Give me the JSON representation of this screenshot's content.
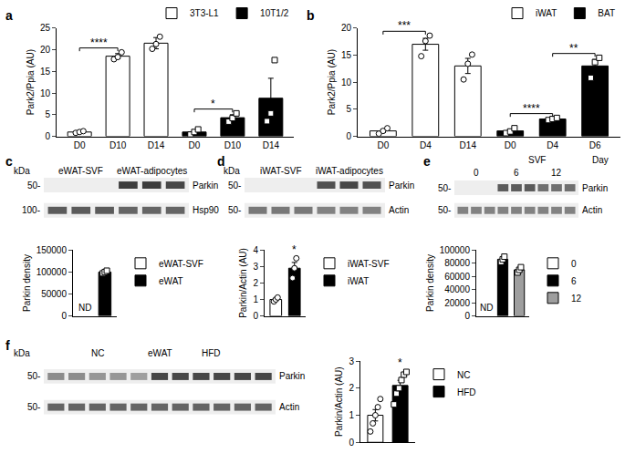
{
  "chart_data": [
    {
      "type": "bar",
      "title": "a",
      "ylabel": "Park2/Ppia (AU)",
      "categories": [
        "D0",
        "D10",
        "D14",
        "D0",
        "D10",
        "D14"
      ],
      "series": [
        {
          "name": "3T3-L1",
          "color": "#ffffff",
          "marker": "circle",
          "values": [
            1.0,
            18.5,
            21.5,
            null,
            null,
            null
          ],
          "errors": [
            0.2,
            0.6,
            1.3,
            null,
            null,
            null
          ],
          "points": [
            [
              0.8,
              1.0,
              1.2
            ],
            [
              17.8,
              18.3,
              19.4
            ],
            [
              20.2,
              21.3,
              23.0
            ],
            null,
            null,
            null
          ]
        },
        {
          "name": "10T1/2",
          "color": "#000000",
          "marker": "square",
          "values": [
            null,
            null,
            null,
            1.0,
            4.3,
            8.8
          ],
          "errors": [
            null,
            null,
            null,
            0.5,
            0.7,
            4.6
          ],
          "points": [
            null,
            null,
            null,
            [
              0.4,
              1.0,
              1.6
            ],
            [
              3.4,
              4.2,
              5.3
            ],
            [
              3.5,
              5.3,
              17.6
            ]
          ]
        }
      ],
      "ylim": [
        0,
        25
      ],
      "yticks": [
        0,
        5,
        10,
        15,
        20,
        25
      ],
      "grid": false,
      "legend": "top",
      "annotations": [
        {
          "text": "****",
          "from": 0,
          "to": 1
        },
        {
          "text": "*",
          "from": 3,
          "to": 4
        }
      ]
    },
    {
      "type": "bar",
      "title": "b",
      "ylabel": "Park2/Ppia (AU)",
      "categories": [
        "D0",
        "D4",
        "D14",
        "D0",
        "D4",
        "D6"
      ],
      "series": [
        {
          "name": "iWAT",
          "color": "#ffffff",
          "marker": "circle",
          "values": [
            1.0,
            17.0,
            13.0,
            null,
            null,
            null
          ],
          "errors": [
            0.3,
            1.1,
            1.4,
            null,
            null,
            null
          ],
          "points": [
            [
              0.5,
              1.0,
              1.5
            ],
            [
              14.8,
              17.6,
              18.6
            ],
            [
              10.5,
              13.4,
              15.1
            ],
            null,
            null,
            null
          ]
        },
        {
          "name": "BAT",
          "color": "#000000",
          "marker": "square",
          "values": [
            null,
            null,
            null,
            1.0,
            3.2,
            13.0
          ],
          "errors": [
            null,
            null,
            null,
            0.25,
            0.12,
            1.2
          ],
          "points": [
            null,
            null,
            null,
            [
              0.6,
              0.9,
              1.5
            ],
            [
              3.0,
              3.2,
              3.4
            ],
            [
              10.8,
              13.7,
              14.5
            ]
          ]
        }
      ],
      "ylim": [
        0,
        20
      ],
      "yticks": [
        0,
        5,
        10,
        15,
        20
      ],
      "grid": false,
      "legend": "top",
      "annotations": [
        {
          "text": "***",
          "from": 0,
          "to": 1
        },
        {
          "text": "****",
          "from": 3,
          "to": 4
        },
        {
          "text": "**",
          "from": 4,
          "to": 5
        }
      ]
    },
    {
      "type": "bar",
      "ylabel": "Parkin density",
      "categories": [
        null,
        null
      ],
      "series": [
        {
          "name": "eWAT-SVF",
          "color": "#ffffff",
          "marker": "circle",
          "values": [
            null,
            null
          ],
          "value_labels": [
            "ND",
            null
          ]
        },
        {
          "name": "eWAT",
          "color": "#000000",
          "marker": "square",
          "values": [
            null,
            100000
          ],
          "errors": [
            null,
            1800
          ],
          "points": [
            null,
            [
              97000,
              100000,
              103000
            ]
          ]
        }
      ],
      "ylim": [
        0,
        150000
      ],
      "yticks": [
        0,
        50000,
        100000,
        150000
      ],
      "grid": false,
      "legend": "right",
      "tick_labels": "y"
    },
    {
      "type": "bar",
      "ylabel": "Parkin/Actin (AU)",
      "categories": [
        null,
        null
      ],
      "series": [
        {
          "name": "iWAT-SVF",
          "color": "#ffffff",
          "marker": "circle",
          "values": [
            1.0,
            null
          ],
          "errors": [
            0.07,
            null
          ],
          "points": [
            [
              0.88,
              1.0,
              1.12
            ],
            null
          ]
        },
        {
          "name": "iWAT",
          "color": "#000000",
          "marker": "circle",
          "values": [
            null,
            2.9
          ],
          "errors": [
            null,
            0.35
          ],
          "points": [
            null,
            [
              2.3,
              2.9,
              3.5
            ]
          ]
        }
      ],
      "ylim": [
        0,
        4
      ],
      "yticks": [
        0,
        1,
        2,
        3,
        4
      ],
      "grid": false,
      "legend": "right",
      "tick_labels": "y",
      "annotations": [
        {
          "text": "*",
          "from": 1,
          "to": 1
        }
      ]
    },
    {
      "type": "bar",
      "ylabel": "Parkin density",
      "categories": [
        null,
        null,
        null
      ],
      "series": [
        {
          "name": "0",
          "color": "#ffffff",
          "marker": "circle",
          "values": [
            null,
            null,
            null
          ],
          "value_labels": [
            "ND",
            null,
            null
          ]
        },
        {
          "name": "6",
          "color": "#000000",
          "marker": "square",
          "values": [
            null,
            86000,
            null
          ],
          "errors": [
            null,
            2300,
            null
          ],
          "points": [
            null,
            [
              82000,
              86000,
              90000
            ],
            null
          ]
        },
        {
          "name": "12",
          "color": "#9e9e9e",
          "marker": "square",
          "values": [
            null,
            null,
            70000
          ],
          "errors": [
            null,
            null,
            2300
          ],
          "points": [
            null,
            null,
            [
              66000,
              70000,
              74000
            ]
          ]
        }
      ],
      "ylim": [
        0,
        100000
      ],
      "yticks": [
        0,
        20000,
        40000,
        60000,
        80000,
        100000
      ],
      "grid": false,
      "legend": "right",
      "tick_labels": "y"
    },
    {
      "type": "bar",
      "ylabel": "Parkin/Actin (AU)",
      "categories": [
        null,
        null
      ],
      "series": [
        {
          "name": "NC",
          "color": "#ffffff",
          "marker": "circle",
          "values": [
            1.0,
            null
          ],
          "errors": [
            0.21,
            null
          ],
          "points": [
            [
              0.4,
              0.7,
              1.0,
              1.3,
              1.6
            ],
            null
          ]
        },
        {
          "name": "HFD",
          "color": "#000000",
          "marker": "square",
          "values": [
            null,
            2.1
          ],
          "errors": [
            null,
            0.19
          ],
          "points": [
            null,
            [
              1.4,
              1.8,
              2.0,
              2.3,
              2.5,
              2.6
            ]
          ]
        }
      ],
      "ylim": [
        0,
        3
      ],
      "yticks": [
        0,
        1,
        2,
        3
      ],
      "grid": false,
      "legend": "right",
      "tick_labels": "y",
      "annotations": [
        {
          "text": "*",
          "from": 1,
          "to": 1
        }
      ]
    }
  ],
  "blots": [
    {
      "panel": "c",
      "kda": "kDa",
      "groups": [
        {
          "text": "eWAT-SVF",
          "lanes": [
            0,
            2
          ]
        },
        {
          "text": "eWAT-adipocytes",
          "lanes": [
            3,
            5
          ]
        }
      ],
      "rows": [
        {
          "label": "Parkin",
          "size": "50-",
          "bands": [
            0,
            0,
            0,
            0.9,
            0.9,
            0.85
          ]
        },
        {
          "label": "Hsp90",
          "size": "100-",
          "bands": [
            0.75,
            0.75,
            0.75,
            0.7,
            0.7,
            0.7
          ]
        }
      ]
    },
    {
      "panel": "d",
      "kda": "kDa",
      "groups": [
        {
          "text": "iWAT-SVF",
          "lanes": [
            0,
            2
          ]
        },
        {
          "text": "iWAT-adipocytes",
          "lanes": [
            3,
            5
          ]
        }
      ],
      "rows": [
        {
          "label": "Parkin",
          "size": "50-",
          "bands": [
            0,
            0,
            0,
            0.8,
            0.85,
            0.8
          ]
        },
        {
          "label": "Actin",
          "size": "50-",
          "bands": [
            0.6,
            0.6,
            0.6,
            0.55,
            0.55,
            0.55
          ]
        }
      ]
    },
    {
      "panel": "e",
      "header": {
        "text": "SVF",
        "lanes": [
          3,
          8
        ]
      },
      "axis_label": "Day",
      "groups": [
        {
          "text": "0",
          "lanes": [
            0,
            2
          ]
        },
        {
          "text": "6",
          "lanes": [
            3,
            5
          ]
        },
        {
          "text": "12",
          "lanes": [
            6,
            8
          ]
        }
      ],
      "rows": [
        {
          "label": "Parkin",
          "size": "50-",
          "bands": [
            0,
            0,
            0,
            0.75,
            0.75,
            0.75,
            0.65,
            0.65,
            0.65
          ]
        },
        {
          "label": "Actin",
          "size": "50-",
          "bands": [
            0.55,
            0.55,
            0.55,
            0.55,
            0.55,
            0.55,
            0.55,
            0.55,
            0.55
          ]
        }
      ]
    },
    {
      "panel": "f",
      "kda": "kDa",
      "title": "eWAT",
      "groups": [
        {
          "text": "NC",
          "lanes": [
            0,
            4
          ]
        },
        {
          "text": "HFD",
          "lanes": [
            5,
            10
          ]
        }
      ],
      "rows": [
        {
          "label": "Parkin",
          "size": "50-",
          "bands": [
            0.5,
            0.5,
            0.45,
            0.45,
            0.4,
            0.85,
            0.85,
            0.85,
            0.85,
            0.85,
            0.85
          ]
        },
        {
          "label": "Actin",
          "size": "50-",
          "bands": [
            0.7,
            0.7,
            0.7,
            0.7,
            0.7,
            0.7,
            0.7,
            0.7,
            0.7,
            0.7,
            0.7
          ]
        }
      ]
    }
  ]
}
